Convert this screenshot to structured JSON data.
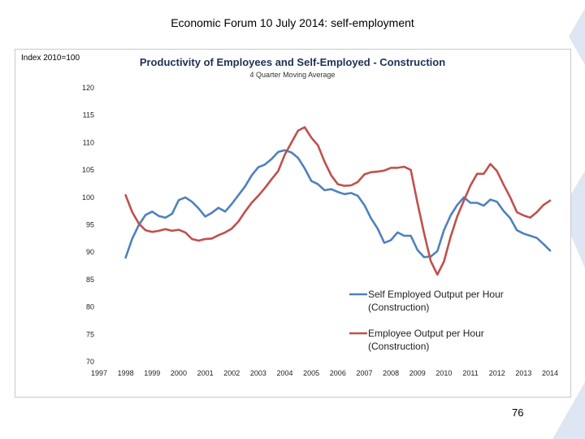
{
  "slide": {
    "title": "Economic Forum 10 July 2014: self-employment",
    "page_number": "76"
  },
  "colors": {
    "self_employed": "#4f81bd",
    "employee": "#c0504d",
    "title": "#1f2f55",
    "decoration": "#dde6f2"
  },
  "chart_data": {
    "type": "line",
    "title": "Productivity of Employees and Self-Employed - Construction",
    "subtitle": "4 Quarter Moving Average",
    "ylabel": "Index 2010=100",
    "xlabel": "",
    "ylim": [
      70,
      120
    ],
    "yticks": [
      120,
      115,
      110,
      105,
      100,
      95,
      90,
      85,
      80,
      75,
      70
    ],
    "xlim": [
      1997,
      2014
    ],
    "xticks": [
      "1997",
      "1998",
      "1999",
      "2000",
      "2001",
      "2002",
      "2003",
      "2004",
      "2005",
      "2006",
      "2007",
      "2008",
      "2009",
      "2010",
      "2011",
      "2012",
      "2013",
      "2014"
    ],
    "grid": false,
    "legend_position": "right",
    "series": [
      {
        "name": "Self Employed Output per Hour (Construction)",
        "color": "#4f81bd",
        "points": [
          [
            1998.0,
            89.0
          ],
          [
            1998.25,
            92.5
          ],
          [
            1998.5,
            95.0
          ],
          [
            1998.75,
            96.8
          ],
          [
            1999.0,
            97.4
          ],
          [
            1999.25,
            96.6
          ],
          [
            1999.5,
            96.3
          ],
          [
            1999.75,
            97.0
          ],
          [
            2000.0,
            99.5
          ],
          [
            2000.25,
            100.0
          ],
          [
            2000.5,
            99.2
          ],
          [
            2000.75,
            98.0
          ],
          [
            2001.0,
            96.5
          ],
          [
            2001.25,
            97.2
          ],
          [
            2001.5,
            98.1
          ],
          [
            2001.75,
            97.4
          ],
          [
            2002.0,
            98.8
          ],
          [
            2002.25,
            100.4
          ],
          [
            2002.5,
            102.0
          ],
          [
            2002.75,
            104.0
          ],
          [
            2003.0,
            105.5
          ],
          [
            2003.25,
            106.0
          ],
          [
            2003.5,
            107.0
          ],
          [
            2003.75,
            108.3
          ],
          [
            2004.0,
            108.6
          ],
          [
            2004.25,
            108.2
          ],
          [
            2004.5,
            107.2
          ],
          [
            2004.75,
            105.3
          ],
          [
            2005.0,
            103.0
          ],
          [
            2005.25,
            102.4
          ],
          [
            2005.5,
            101.3
          ],
          [
            2005.75,
            101.5
          ],
          [
            2006.0,
            101.0
          ],
          [
            2006.25,
            100.6
          ],
          [
            2006.5,
            100.8
          ],
          [
            2006.75,
            100.3
          ],
          [
            2007.0,
            98.6
          ],
          [
            2007.25,
            96.2
          ],
          [
            2007.5,
            94.3
          ],
          [
            2007.75,
            91.7
          ],
          [
            2008.0,
            92.2
          ],
          [
            2008.25,
            93.6
          ],
          [
            2008.5,
            93.0
          ],
          [
            2008.75,
            93.0
          ],
          [
            2009.0,
            90.4
          ],
          [
            2009.25,
            89.1
          ],
          [
            2009.5,
            89.2
          ],
          [
            2009.75,
            90.2
          ],
          [
            2010.0,
            94.0
          ],
          [
            2010.25,
            96.7
          ],
          [
            2010.5,
            98.6
          ],
          [
            2010.75,
            100.0
          ],
          [
            2011.0,
            99.0
          ],
          [
            2011.25,
            99.0
          ],
          [
            2011.5,
            98.5
          ],
          [
            2011.75,
            99.6
          ],
          [
            2012.0,
            99.2
          ],
          [
            2012.25,
            97.5
          ],
          [
            2012.5,
            96.2
          ],
          [
            2012.75,
            94.0
          ],
          [
            2013.0,
            93.4
          ],
          [
            2013.25,
            93.0
          ],
          [
            2013.5,
            92.6
          ],
          [
            2013.75,
            91.5
          ],
          [
            2014.0,
            90.3
          ]
        ]
      },
      {
        "name": "Employee Output per Hour (Construction)",
        "color": "#c0504d",
        "points": [
          [
            1998.0,
            100.4
          ],
          [
            1998.25,
            97.3
          ],
          [
            1998.5,
            95.2
          ],
          [
            1998.75,
            94.0
          ],
          [
            1999.0,
            93.7
          ],
          [
            1999.25,
            93.9
          ],
          [
            1999.5,
            94.2
          ],
          [
            1999.75,
            93.9
          ],
          [
            2000.0,
            94.1
          ],
          [
            2000.25,
            93.6
          ],
          [
            2000.5,
            92.4
          ],
          [
            2000.75,
            92.1
          ],
          [
            2001.0,
            92.4
          ],
          [
            2001.25,
            92.5
          ],
          [
            2001.5,
            93.1
          ],
          [
            2001.75,
            93.6
          ],
          [
            2002.0,
            94.3
          ],
          [
            2002.25,
            95.6
          ],
          [
            2002.5,
            97.4
          ],
          [
            2002.75,
            99.0
          ],
          [
            2003.0,
            100.3
          ],
          [
            2003.25,
            101.7
          ],
          [
            2003.5,
            103.3
          ],
          [
            2003.75,
            104.8
          ],
          [
            2004.0,
            107.8
          ],
          [
            2004.25,
            110.0
          ],
          [
            2004.5,
            112.2
          ],
          [
            2004.75,
            112.8
          ],
          [
            2005.0,
            110.9
          ],
          [
            2005.25,
            109.5
          ],
          [
            2005.5,
            106.5
          ],
          [
            2005.75,
            104.0
          ],
          [
            2006.0,
            102.4
          ],
          [
            2006.25,
            102.1
          ],
          [
            2006.5,
            102.2
          ],
          [
            2006.75,
            102.8
          ],
          [
            2007.0,
            104.2
          ],
          [
            2007.25,
            104.6
          ],
          [
            2007.5,
            104.7
          ],
          [
            2007.75,
            104.9
          ],
          [
            2008.0,
            105.4
          ],
          [
            2008.25,
            105.4
          ],
          [
            2008.5,
            105.6
          ],
          [
            2008.75,
            105.0
          ],
          [
            2009.0,
            99.0
          ],
          [
            2009.25,
            93.5
          ],
          [
            2009.5,
            88.4
          ],
          [
            2009.75,
            85.9
          ],
          [
            2010.0,
            88.3
          ],
          [
            2010.25,
            92.8
          ],
          [
            2010.5,
            96.5
          ],
          [
            2010.75,
            99.4
          ],
          [
            2011.0,
            102.2
          ],
          [
            2011.25,
            104.3
          ],
          [
            2011.5,
            104.3
          ],
          [
            2011.75,
            106.1
          ],
          [
            2012.0,
            104.8
          ],
          [
            2012.25,
            102.3
          ],
          [
            2012.5,
            100.0
          ],
          [
            2012.75,
            97.3
          ],
          [
            2013.0,
            96.7
          ],
          [
            2013.25,
            96.3
          ],
          [
            2013.5,
            97.3
          ],
          [
            2013.75,
            98.6
          ],
          [
            2014.0,
            99.4
          ]
        ]
      }
    ]
  }
}
